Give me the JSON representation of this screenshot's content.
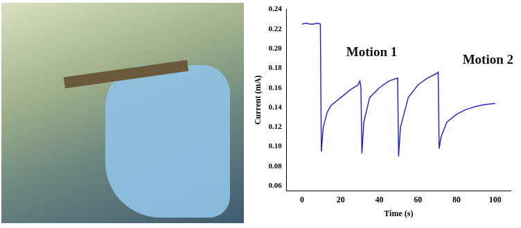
{
  "chart_data": {
    "type": "line",
    "x_label": "Time (s)",
    "y_label": "Current (mA)",
    "annotations": [
      "Motion 1",
      "Motion 2"
    ],
    "x": [
      0,
      2,
      4,
      6,
      8,
      9.5,
      10,
      11,
      13,
      15,
      20,
      25,
      29,
      30,
      30.5,
      31,
      32,
      35,
      40,
      45,
      49.5,
      50,
      51,
      55,
      60,
      65,
      70,
      70.5,
      71,
      72,
      75,
      80,
      85,
      90,
      95,
      100
    ],
    "series": [
      {
        "name": "Current",
        "color": "#2828c8",
        "values": [
          0.225,
          0.226,
          0.225,
          0.225,
          0.226,
          0.225,
          0.095,
          0.12,
          0.135,
          0.142,
          0.15,
          0.158,
          0.163,
          0.167,
          0.16,
          0.093,
          0.125,
          0.15,
          0.16,
          0.167,
          0.17,
          0.09,
          0.12,
          0.15,
          0.163,
          0.17,
          0.175,
          0.176,
          0.098,
          0.11,
          0.125,
          0.133,
          0.138,
          0.141,
          0.143,
          0.144
        ]
      }
    ],
    "xlim": [
      -8,
      108
    ],
    "xticks": [
      0,
      20,
      40,
      60,
      80,
      100
    ],
    "ylim": [
      0.055,
      0.24
    ],
    "yticks": [
      0.06,
      0.08,
      {
        "value": 0.1,
        "label": "0.10"
      },
      0.12,
      0.14,
      0.16,
      0.18,
      {
        "value": 0.2,
        "label": "0.20"
      },
      0.22,
      0.24
    ],
    "grid": false
  }
}
